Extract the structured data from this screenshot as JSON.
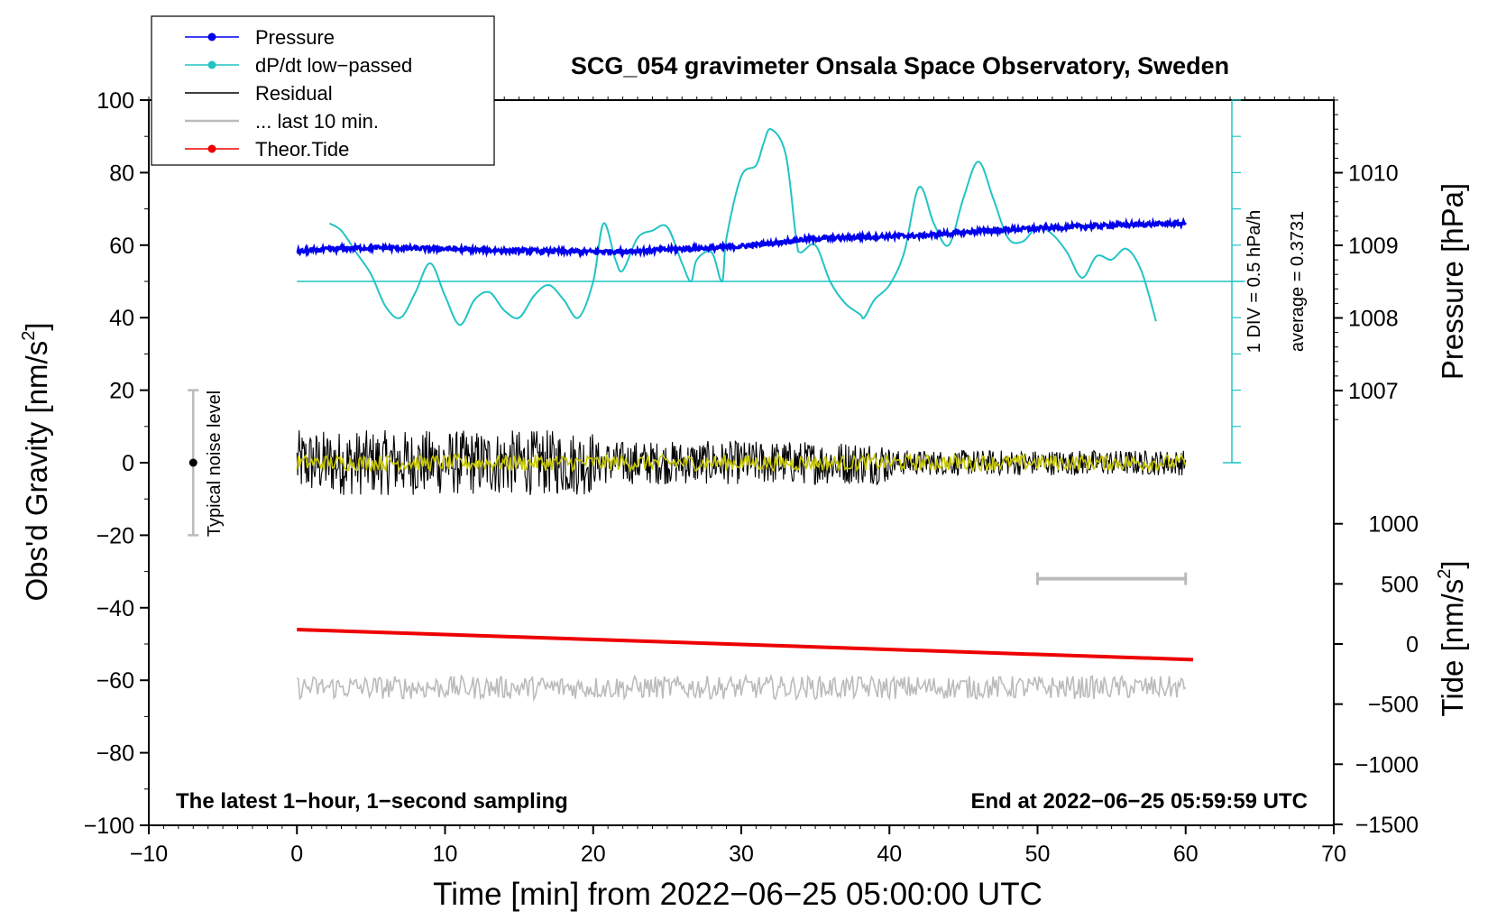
{
  "chart_data": {
    "type": "line",
    "title": "SCG_054 gravimeter Onsala Space Observatory, Sweden",
    "xlabel": "Time [min] from 2022−06−25 05:00:00 UTC",
    "ylabel_main": "Obs'd Gravity [nm/s",
    "ylabel_main_sup": "2",
    "ylabel_main_tail": "]",
    "ylabel_pressure": "Pressure [hPa]",
    "ylabel_tide": "Tide [nm/s",
    "ylabel_tide_sup": "2",
    "ylabel_tide_tail": "]",
    "xlim": [
      -10,
      70
    ],
    "ylim": [
      -100,
      100
    ],
    "x_ticks": [
      -10,
      0,
      10,
      20,
      30,
      40,
      50,
      60,
      70
    ],
    "x_tick_labels": [
      "−10",
      "0",
      "10",
      "20",
      "30",
      "40",
      "50",
      "60",
      "70"
    ],
    "y_ticks": [
      -100,
      -80,
      -60,
      -40,
      -20,
      0,
      20,
      40,
      60,
      80,
      100
    ],
    "y_tick_labels": [
      "−100",
      "−80",
      "−60",
      "−40",
      "−20",
      "0",
      "20",
      "40",
      "60",
      "80",
      "100"
    ],
    "pressure_ticks": [
      1007,
      1008,
      1009,
      1010
    ],
    "pressure_tick_labels": [
      "1007",
      "1008",
      "1009",
      "1010"
    ],
    "tide_ticks": [
      -1500,
      -1000,
      -500,
      0,
      500,
      1000
    ],
    "tide_tick_labels": [
      "−1500",
      "−1000",
      "−500",
      "0",
      "500",
      "1000"
    ],
    "legend": [
      {
        "label": "Pressure",
        "color": "#0000ee",
        "marker": true
      },
      {
        "label": "dP/dt low−passed",
        "color": "#22c4c4",
        "marker": true
      },
      {
        "label": "Residual",
        "color": "#000000",
        "marker": false
      },
      {
        "label": "... last 10 min.",
        "color": "#bbbbbb",
        "marker": false
      },
      {
        "label": "Theor.Tide",
        "color": "#ee0000",
        "marker": true
      }
    ],
    "dpdt_scale_label": "1 DIV = 0.5 hPa/h",
    "dpdt_average_label": "average = 0.3731",
    "noise_label": "Typical noise level",
    "footer_left": "The latest 1−hour, 1−second sampling",
    "footer_right": "End at 2022−06−25 05:59:59 UTC",
    "series": [
      {
        "name": "Pressure",
        "color": "#0000ee",
        "x": [
          0,
          2,
          4,
          6,
          8,
          10,
          12,
          14,
          16,
          18,
          20,
          22,
          24,
          26,
          28,
          30,
          32,
          34,
          36,
          38,
          40,
          42,
          44,
          46,
          48,
          50,
          52,
          54,
          56,
          58,
          60
        ],
        "y": [
          58.2,
          58.8,
          59.2,
          59.3,
          59.1,
          59.0,
          58.7,
          58.5,
          58.4,
          58.3,
          58.2,
          58.3,
          58.6,
          59.0,
          59.2,
          59.7,
          60.5,
          61.5,
          62.0,
          62.2,
          62.5,
          62.6,
          63.2,
          63.8,
          64.3,
          64.6,
          65.0,
          65.3,
          65.6,
          65.8,
          66.0
        ]
      },
      {
        "name": "dP/dt low-passed",
        "color": "#22c4c4",
        "x": [
          2.2,
          3,
          4,
          5,
          6,
          7,
          8,
          9,
          10,
          11,
          12,
          13,
          14,
          15,
          16,
          17,
          18,
          19,
          20,
          20.7,
          21.5,
          22,
          23,
          24,
          25,
          26,
          26.6,
          27,
          28,
          28.7,
          29,
          30,
          31,
          31.5,
          32,
          33,
          33.7,
          34,
          35,
          36,
          37,
          38,
          38.3,
          39,
          40,
          41,
          42,
          43,
          44,
          45,
          46,
          47,
          48,
          49,
          50,
          51,
          52,
          53,
          54,
          55,
          56,
          57,
          58
        ],
        "y": [
          66,
          64,
          58,
          52,
          43,
          40,
          47,
          55,
          46,
          38,
          45,
          47,
          42,
          40,
          46,
          49,
          45,
          40,
          50,
          66,
          56,
          53,
          62,
          64,
          65,
          55,
          50,
          56,
          58,
          50,
          62,
          79,
          82,
          88,
          92,
          85,
          62,
          58,
          60,
          50,
          44,
          41,
          40,
          45,
          49,
          58,
          76,
          66,
          60,
          73,
          83,
          73,
          62,
          61,
          65,
          63,
          58,
          51,
          57,
          56,
          59,
          53,
          39
        ]
      },
      {
        "name": "Residual",
        "color": "#000000",
        "description_amplitude": "noisy residual around 0, roughly ±10 nm/s² early, ±3 late"
      },
      {
        "name": "... last 10 min.",
        "color": "#bbbbbb",
        "x_range": [
          50,
          60
        ],
        "y": -32
      },
      {
        "name": "Theor.Tide",
        "color": "#ee0000",
        "x": [
          0,
          60.5
        ],
        "y": [
          120,
          -130
        ]
      }
    ],
    "dpdt_baseline": 50,
    "noise_bar": {
      "x": -7,
      "center": 0,
      "low": -20,
      "high": 20
    }
  }
}
